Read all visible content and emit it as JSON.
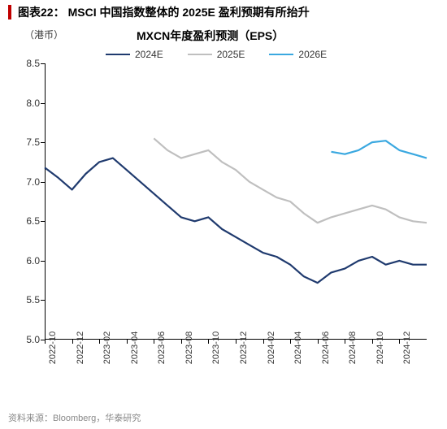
{
  "header": {
    "figure_label": "图表22：",
    "title": "MSCI 中国指数整体的 2025E 盈利预期有所抬升"
  },
  "chart": {
    "yaxis_unit": "（港币）",
    "chart_title": "MXCN年度盈利预测（EPS）",
    "type": "line",
    "ylim": [
      5.0,
      8.5
    ],
    "ytick_step": 0.5,
    "yticks": [
      5.0,
      5.5,
      6.0,
      6.5,
      7.0,
      7.5,
      8.0,
      8.5
    ],
    "xticks": [
      "2022-10",
      "2022-12",
      "2023-02",
      "2023-04",
      "2023-06",
      "2023-08",
      "2023-10",
      "2023-12",
      "2024-02",
      "2024-04",
      "2024-06",
      "2024-08",
      "2024-10",
      "2024-12"
    ],
    "x_domain": [
      0,
      28
    ],
    "background_color": "#ffffff",
    "axis_color": "#000000",
    "tick_fontsize": 12,
    "line_width": 2.2,
    "series": [
      {
        "name": "2024E",
        "color": "#1f3a6e",
        "x": [
          0,
          1,
          2,
          3,
          4,
          5,
          6,
          7,
          8,
          9,
          10,
          11,
          12,
          13,
          14,
          15,
          16,
          17,
          18,
          19,
          20,
          21,
          22,
          23,
          24,
          25,
          26,
          27,
          28
        ],
        "y": [
          7.18,
          7.05,
          6.9,
          7.1,
          7.25,
          7.3,
          7.15,
          7.0,
          6.85,
          6.7,
          6.55,
          6.5,
          6.55,
          6.4,
          6.3,
          6.2,
          6.1,
          6.05,
          5.95,
          5.8,
          5.72,
          5.85,
          5.9,
          6.0,
          6.05,
          5.95,
          6.0,
          5.95,
          5.95
        ]
      },
      {
        "name": "2025E",
        "color": "#bfbfbf",
        "x": [
          8,
          9,
          10,
          11,
          12,
          13,
          14,
          15,
          16,
          17,
          18,
          19,
          20,
          21,
          22,
          23,
          24,
          25,
          26,
          27,
          28
        ],
        "y": [
          7.55,
          7.4,
          7.3,
          7.35,
          7.4,
          7.25,
          7.15,
          7.0,
          6.9,
          6.8,
          6.75,
          6.6,
          6.48,
          6.55,
          6.6,
          6.65,
          6.7,
          6.65,
          6.55,
          6.5,
          6.48
        ]
      },
      {
        "name": "2026E",
        "color": "#3aa8e0",
        "x": [
          21,
          22,
          23,
          24,
          25,
          26,
          27,
          28
        ],
        "y": [
          7.38,
          7.35,
          7.4,
          7.5,
          7.52,
          7.4,
          7.35,
          7.3
        ]
      }
    ]
  },
  "legend": {
    "items": [
      {
        "label": "2024E",
        "color": "#1f3a6e"
      },
      {
        "label": "2025E",
        "color": "#bfbfbf"
      },
      {
        "label": "2026E",
        "color": "#3aa8e0"
      }
    ]
  },
  "source": "资料来源：Bloomberg，华泰研究",
  "colors": {
    "title_indicator": "#c00000",
    "source_text": "#999999"
  }
}
